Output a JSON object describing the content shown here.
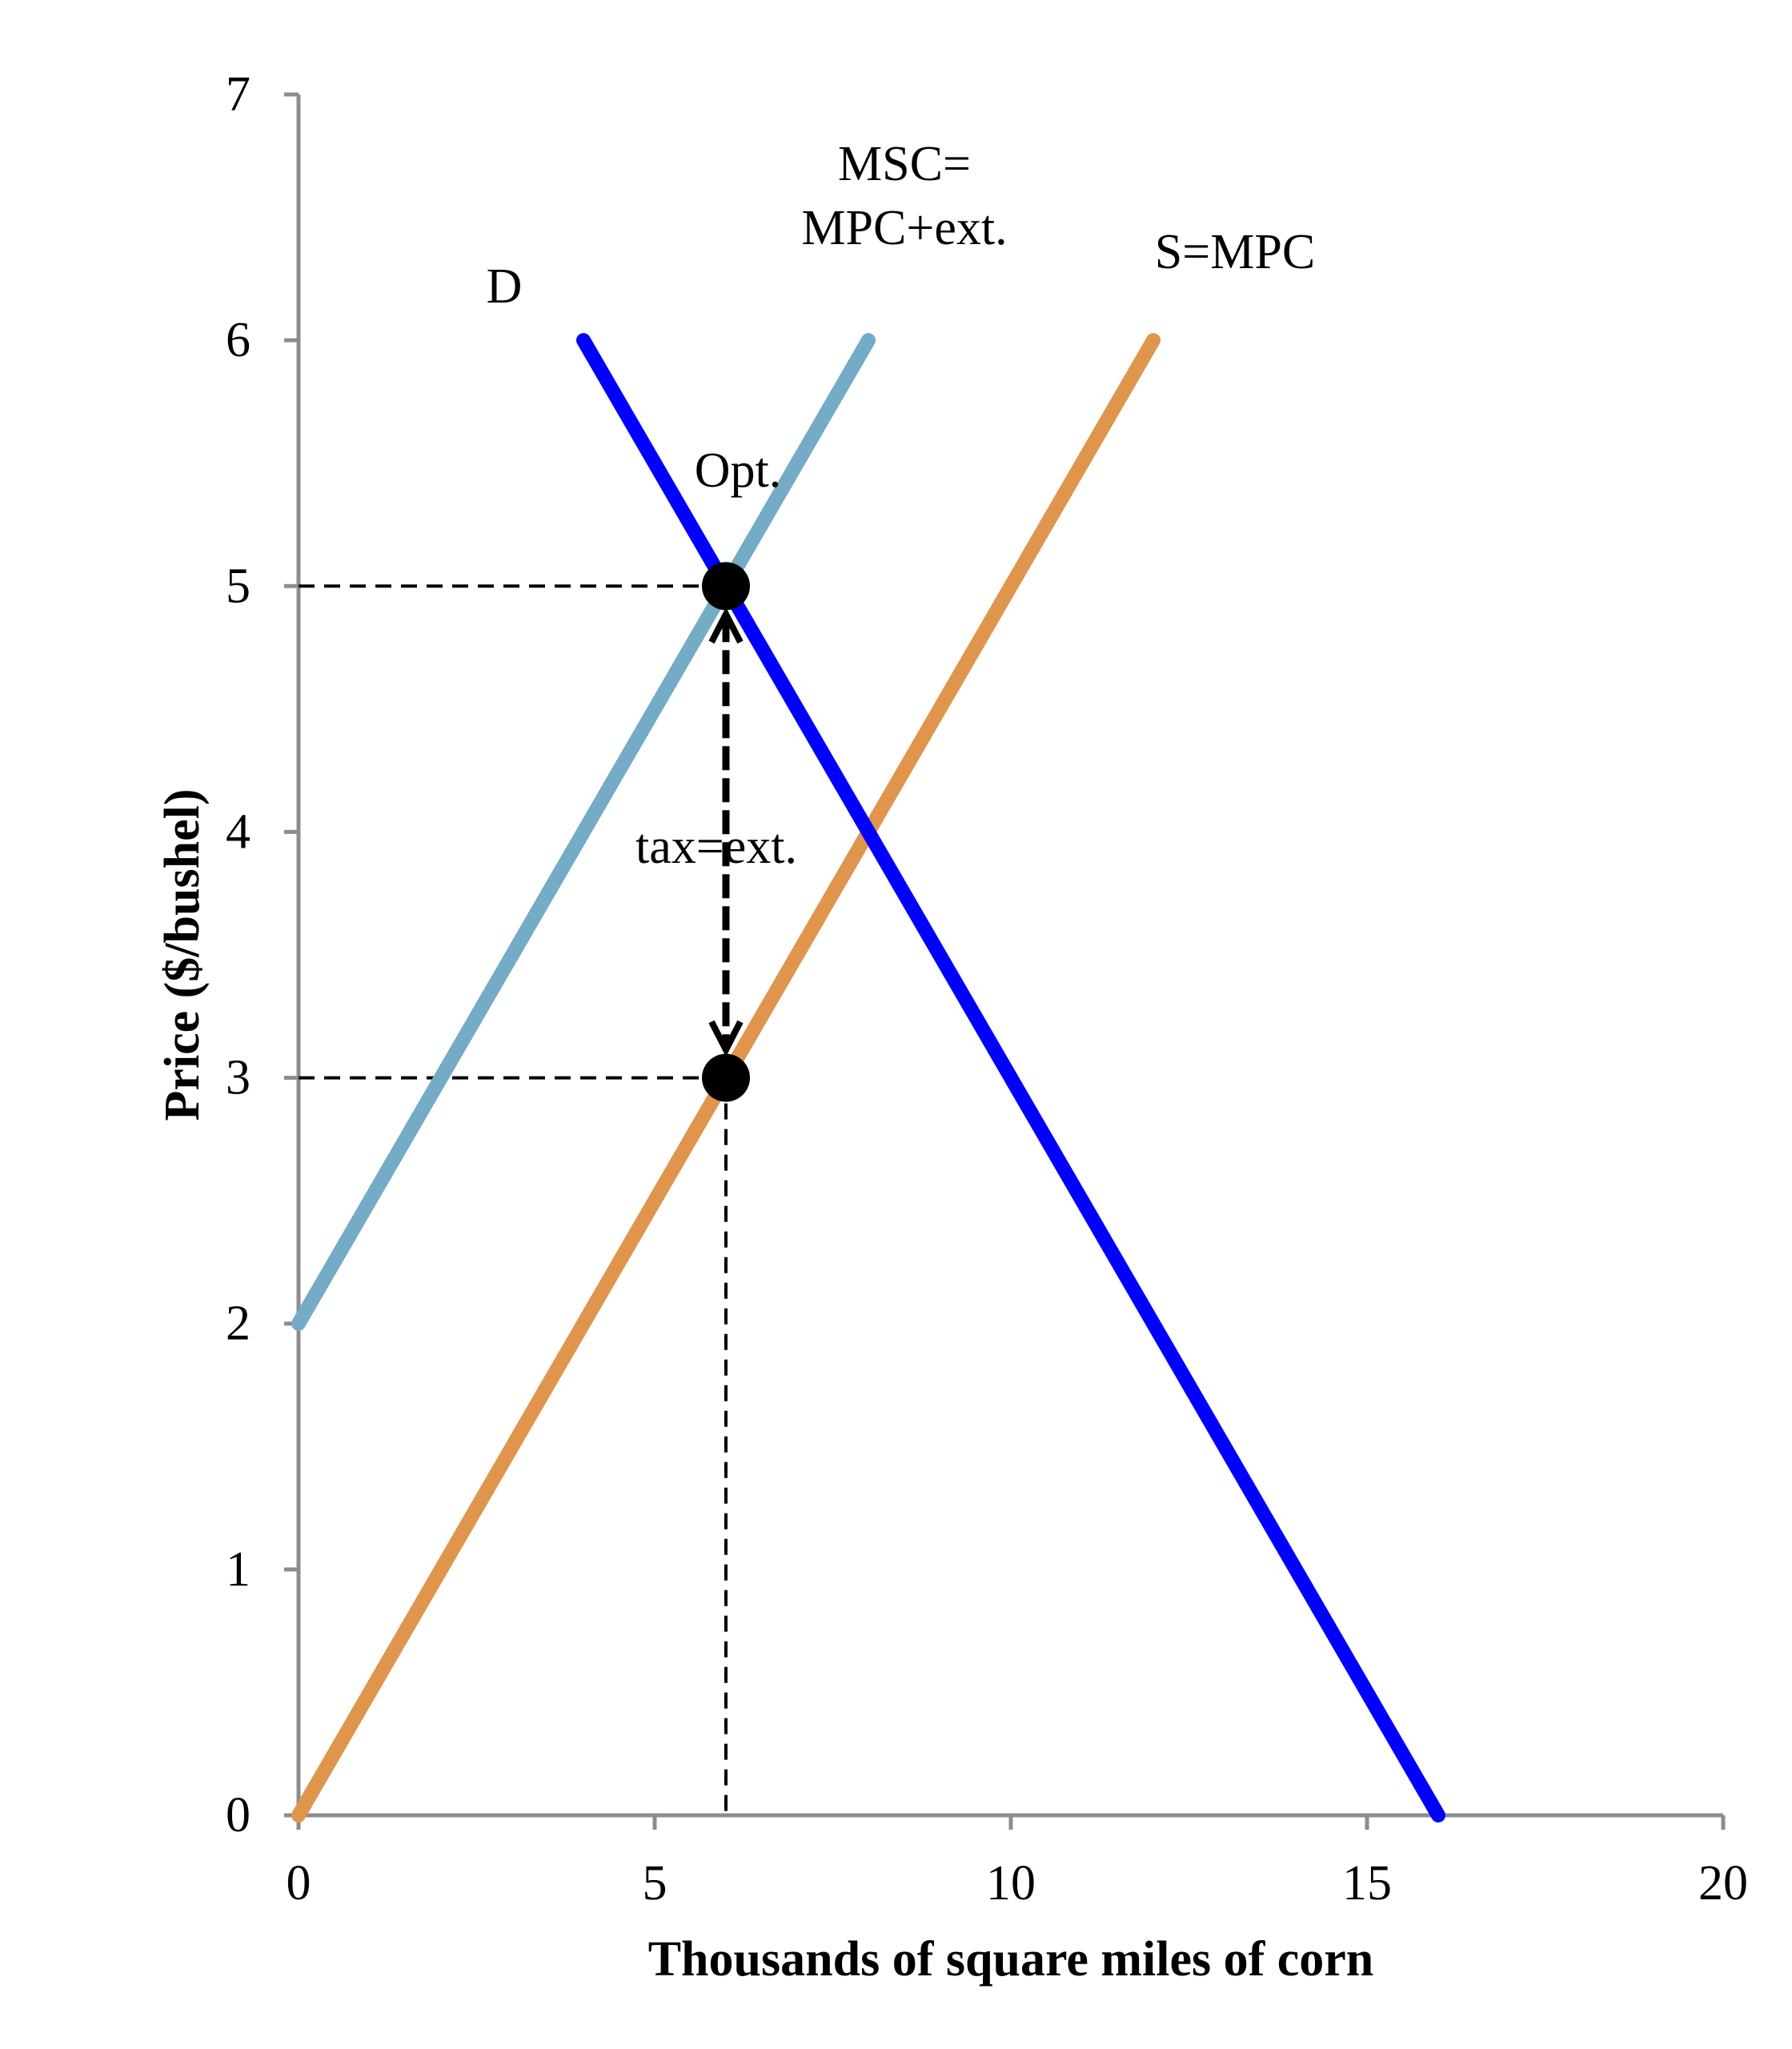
{
  "chart_data": {
    "type": "line",
    "xlabel": "Thousands of square miles of corn",
    "ylabel": "Price ($/bushel)",
    "xlim": [
      0,
      20
    ],
    "ylim": [
      0,
      7
    ],
    "x_ticks": [
      "0",
      "5",
      "10",
      "15",
      "20"
    ],
    "y_ticks": [
      "0",
      "1",
      "2",
      "3",
      "4",
      "5",
      "6",
      "7"
    ],
    "grid": false,
    "series": [
      {
        "name": "D",
        "color": "#0000ff",
        "x": [
          4,
          16
        ],
        "y": [
          6,
          0
        ]
      },
      {
        "name": "MSC= MPC+ext.",
        "color": "#74abc6",
        "x": [
          0,
          8
        ],
        "y": [
          2,
          6
        ]
      },
      {
        "name": "S=MPC",
        "color": "#e0954d",
        "x": [
          0,
          12
        ],
        "y": [
          0,
          6
        ]
      }
    ],
    "labels": {
      "demand": "D",
      "msc_line1": "MSC=",
      "msc_line2": "MPC+ext.",
      "supply": "S=MPC",
      "optimum": "Opt.",
      "tax": "tax=ext."
    },
    "points": [
      {
        "x": 6,
        "y": 5
      },
      {
        "x": 6,
        "y": 3
      }
    ]
  }
}
